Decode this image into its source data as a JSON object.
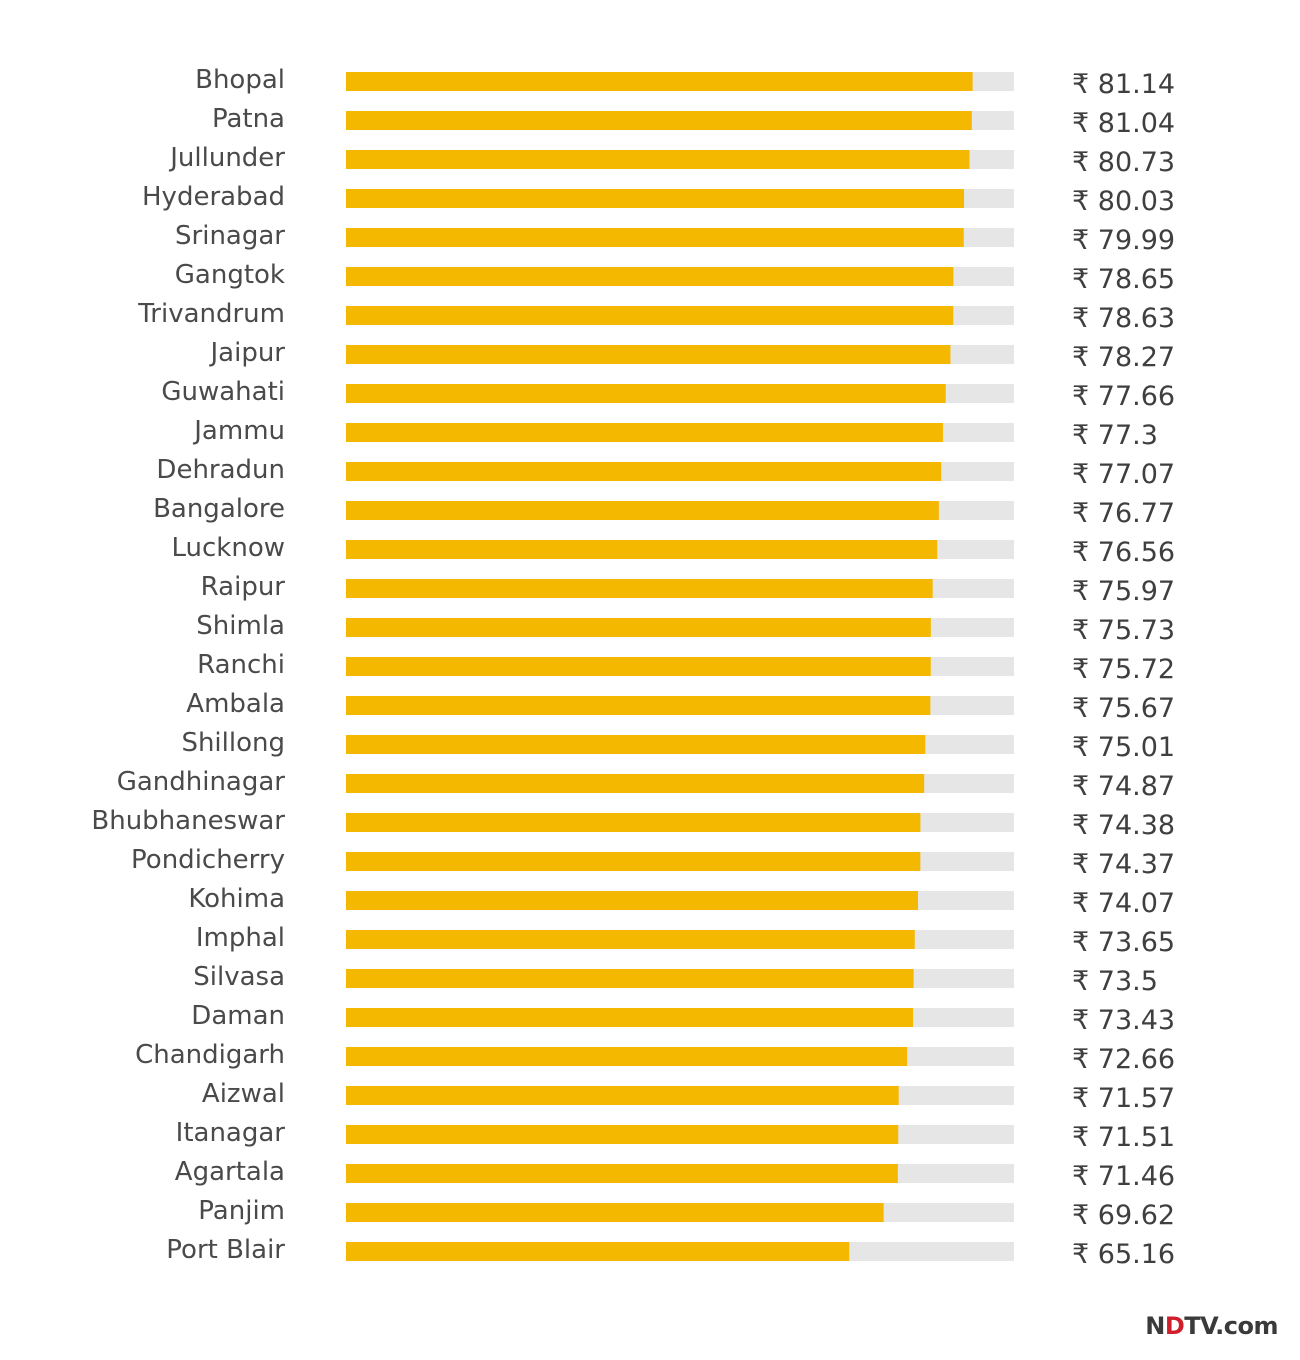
{
  "chart_data": {
    "type": "bar",
    "orientation": "horizontal",
    "currency_symbol": "₹",
    "xlim": [
      0,
      86.5
    ],
    "colors": {
      "bar": "#F5B800",
      "track": "#E6E6E6"
    },
    "categories": [
      "Bhopal",
      "Patna",
      "Jullunder",
      "Hyderabad",
      "Srinagar",
      "Gangtok",
      "Trivandrum",
      "Jaipur",
      "Guwahati",
      "Jammu",
      "Dehradun",
      "Bangalore",
      "Lucknow",
      "Raipur",
      "Shimla",
      "Ranchi",
      "Ambala",
      "Shillong",
      "Gandhinagar",
      "Bhubhaneswar",
      "Pondicherry",
      "Kohima",
      "Imphal",
      "Silvasa",
      "Daman",
      "Chandigarh",
      "Aizwal",
      "Itanagar",
      "Agartala",
      "Panjim",
      "Port Blair"
    ],
    "values": [
      81.14,
      81.04,
      80.73,
      80.03,
      79.99,
      78.65,
      78.63,
      78.27,
      77.66,
      77.3,
      77.07,
      76.77,
      76.56,
      75.97,
      75.73,
      75.72,
      75.67,
      75.01,
      74.87,
      74.38,
      74.37,
      74.07,
      73.65,
      73.5,
      73.43,
      72.66,
      71.57,
      71.51,
      71.46,
      69.62,
      65.16
    ]
  },
  "brand": {
    "prefix": "N",
    "dot": "D",
    "suffix": "TV.com"
  }
}
